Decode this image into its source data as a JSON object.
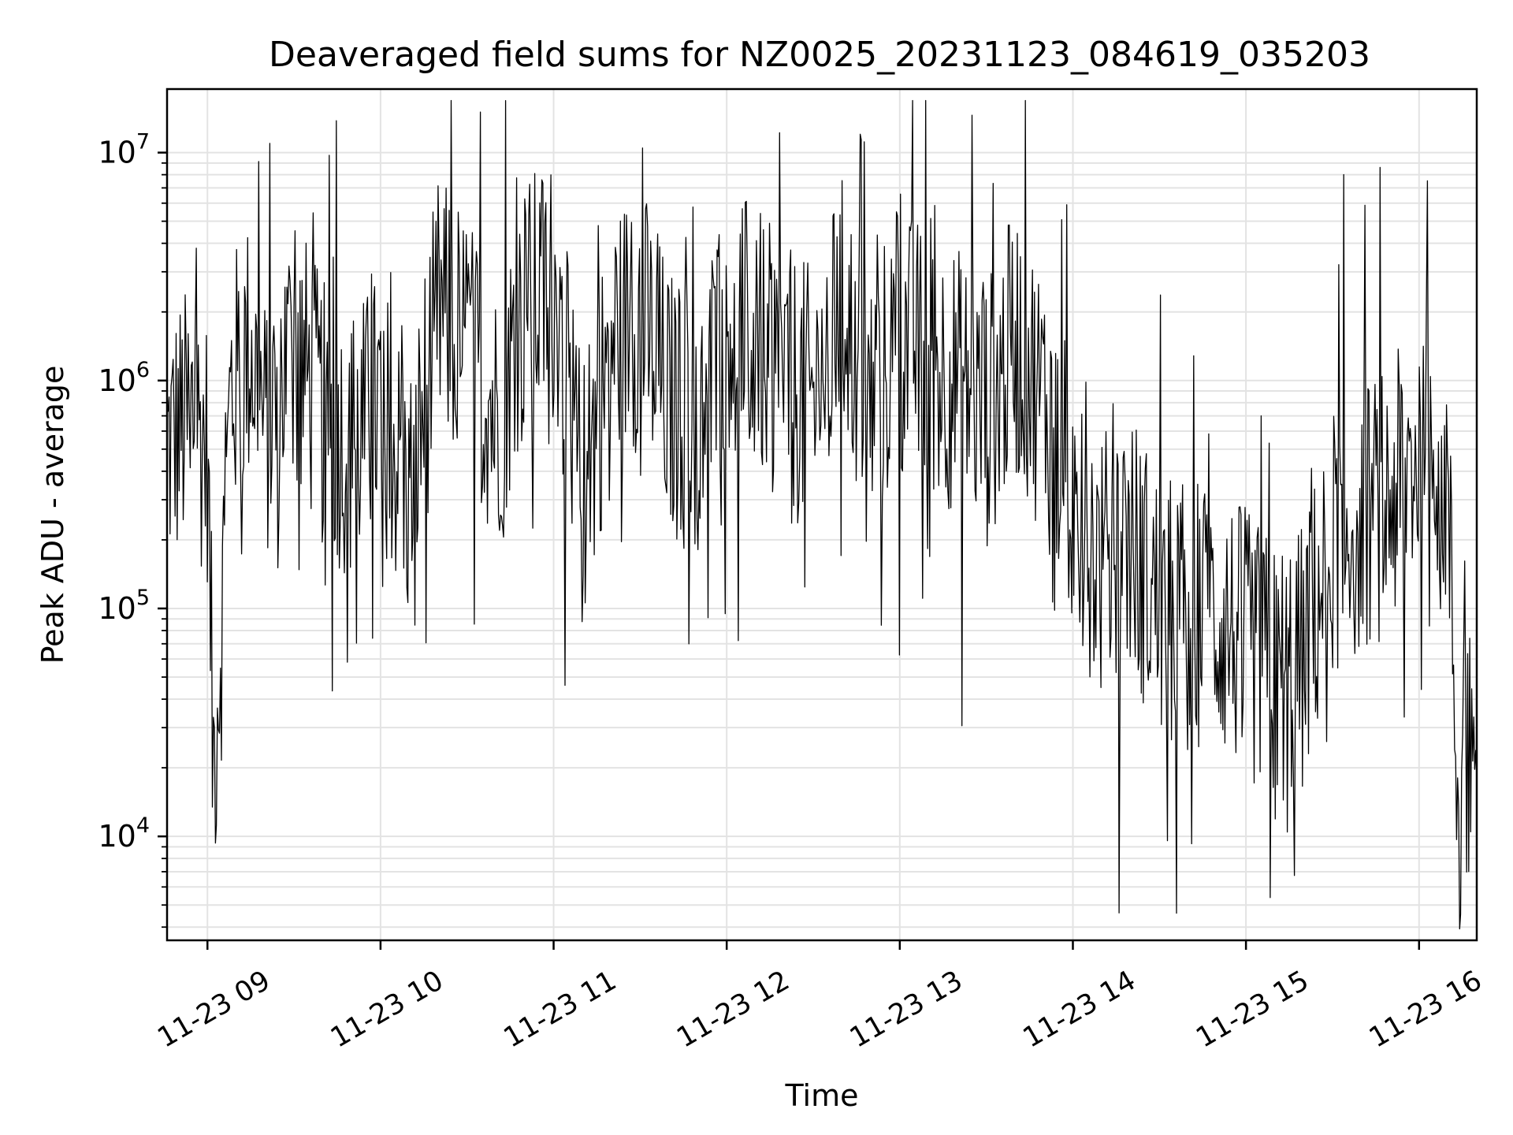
{
  "chart_data": {
    "type": "line",
    "title": "Deaveraged field sums for NZ0025_20231123_084619_035203",
    "xlabel": "Time",
    "ylabel": "Peak ADU - average",
    "yscale": "log",
    "xlim": [
      "2023-11-23T08:46",
      "2023-11-23T16:20"
    ],
    "ylim": [
      3500,
      19000000
    ],
    "xticks": [
      {
        "t": "2023-11-23T09:00",
        "label": "11-23 09"
      },
      {
        "t": "2023-11-23T10:00",
        "label": "11-23 10"
      },
      {
        "t": "2023-11-23T11:00",
        "label": "11-23 11"
      },
      {
        "t": "2023-11-23T12:00",
        "label": "11-23 12"
      },
      {
        "t": "2023-11-23T13:00",
        "label": "11-23 13"
      },
      {
        "t": "2023-11-23T14:00",
        "label": "11-23 14"
      },
      {
        "t": "2023-11-23T15:00",
        "label": "11-23 15"
      },
      {
        "t": "2023-11-23T16:00",
        "label": "11-23 16"
      }
    ],
    "yticks": [
      {
        "value": 10000,
        "base": "10",
        "exp": "4"
      },
      {
        "value": 100000,
        "base": "10",
        "exp": "5"
      },
      {
        "value": 1000000,
        "base": "10",
        "exp": "6"
      },
      {
        "value": 10000000,
        "base": "10",
        "exp": "7"
      }
    ],
    "grid": true,
    "line_color": "#000000",
    "grid_color": "#e3e3e3",
    "series": [
      {
        "x": [
          "2023-11-23T08:46",
          "2023-11-23T08:50",
          "2023-11-23T08:55",
          "2023-11-23T09:00",
          "2023-11-23T09:02",
          "2023-11-23T09:05",
          "2023-11-23T09:08",
          "2023-11-23T09:15",
          "2023-11-23T09:20",
          "2023-11-23T09:30",
          "2023-11-23T09:40",
          "2023-11-23T09:50",
          "2023-11-23T10:00",
          "2023-11-23T10:10",
          "2023-11-23T10:20",
          "2023-11-23T10:30",
          "2023-11-23T10:40",
          "2023-11-23T10:50",
          "2023-11-23T11:00",
          "2023-11-23T11:10",
          "2023-11-23T11:20",
          "2023-11-23T11:30",
          "2023-11-23T11:40",
          "2023-11-23T11:50",
          "2023-11-23T12:00",
          "2023-11-23T12:10",
          "2023-11-23T12:20",
          "2023-11-23T12:30",
          "2023-11-23T12:40",
          "2023-11-23T12:50",
          "2023-11-23T13:00",
          "2023-11-23T13:10",
          "2023-11-23T13:20",
          "2023-11-23T13:30",
          "2023-11-23T13:40",
          "2023-11-23T13:50",
          "2023-11-23T14:00",
          "2023-11-23T14:10",
          "2023-11-23T14:20",
          "2023-11-23T14:30",
          "2023-11-23T14:40",
          "2023-11-23T14:50",
          "2023-11-23T15:00",
          "2023-11-23T15:10",
          "2023-11-23T15:20",
          "2023-11-23T15:30",
          "2023-11-23T15:40",
          "2023-11-23T15:50",
          "2023-11-23T16:00",
          "2023-11-23T16:05",
          "2023-11-23T16:10",
          "2023-11-23T16:14",
          "2023-11-23T16:20"
        ],
        "y": [
          500000,
          600000,
          700000,
          500000,
          20000,
          90000,
          900000,
          1400000,
          600000,
          1500000,
          700000,
          500000,
          800000,
          300000,
          2000000,
          1500000,
          700000,
          2000000,
          2500000,
          300000,
          1500000,
          2000000,
          800000,
          600000,
          2000000,
          1500000,
          1000000,
          800000,
          2000000,
          800000,
          1500000,
          1200000,
          1000000,
          700000,
          1500000,
          800000,
          300000,
          150000,
          200000,
          100000,
          100000,
          90000,
          70000,
          50000,
          60000,
          200000,
          250000,
          300000,
          500000,
          800000,
          300000,
          10000,
          40000
        ]
      }
    ]
  }
}
